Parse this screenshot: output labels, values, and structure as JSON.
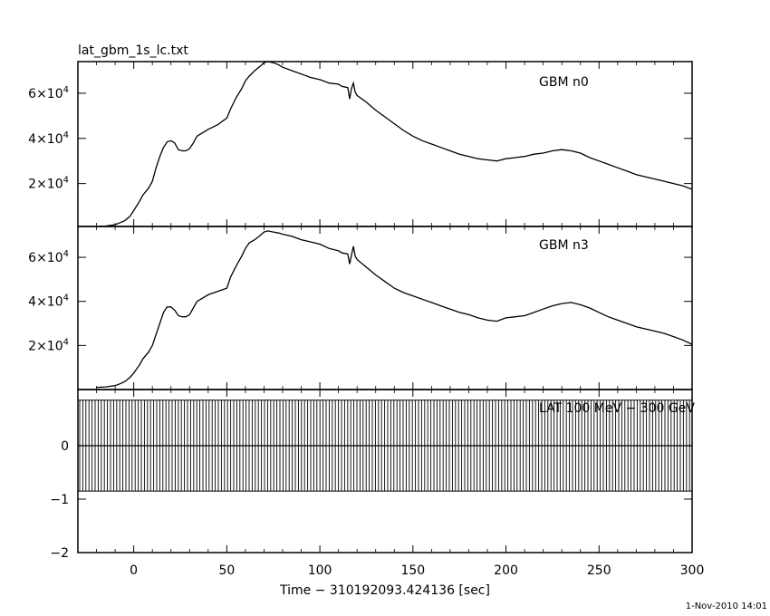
{
  "chart_data": {
    "type": "line",
    "title": "lat_gbm_1s_lc.txt",
    "xlabel": "Time − 310192093.424136 [sec]",
    "xlim": [
      -30,
      300
    ],
    "x_ticks": [
      0,
      50,
      100,
      150,
      200,
      250,
      300
    ],
    "timestamp": "1-Nov-2010 14:01",
    "panels": [
      {
        "label": "GBM n0",
        "ylim": [
          1000,
          74000
        ],
        "y_ticks": [
          {
            "base": "2×10",
            "exp": "4",
            "value": 20000
          },
          {
            "base": "4×10",
            "exp": "4",
            "value": 40000
          },
          {
            "base": "6×10",
            "exp": "4",
            "value": 60000
          }
        ],
        "series": {
          "x": [
            -20,
            -15,
            -10,
            -8,
            -5,
            -2,
            0,
            3,
            5,
            8,
            10,
            12,
            14,
            16,
            18,
            20,
            22,
            24,
            26,
            28,
            30,
            32,
            34,
            36,
            40,
            45,
            50,
            52,
            55,
            58,
            60,
            62,
            65,
            68,
            70,
            72,
            75,
            78,
            80,
            85,
            90,
            95,
            100,
            105,
            110,
            112,
            115,
            116,
            117,
            118,
            119,
            120,
            125,
            130,
            135,
            140,
            145,
            150,
            155,
            160,
            165,
            170,
            175,
            180,
            185,
            190,
            195,
            200,
            205,
            210,
            215,
            220,
            225,
            230,
            235,
            240,
            245,
            250,
            255,
            260,
            265,
            270,
            275,
            280,
            285,
            290,
            295,
            300
          ],
          "y": [
            1000,
            1200,
            1800,
            2500,
            3500,
            5500,
            8000,
            12000,
            15000,
            18000,
            21000,
            27000,
            32000,
            36000,
            38500,
            39000,
            38000,
            35000,
            34500,
            34500,
            35500,
            38000,
            41000,
            42000,
            44000,
            46000,
            49000,
            53000,
            58000,
            62000,
            65500,
            67500,
            70000,
            72000,
            73500,
            74000,
            73500,
            72500,
            71500,
            70000,
            68500,
            67000,
            66000,
            64500,
            64000,
            63000,
            62500,
            57500,
            62000,
            64500,
            60500,
            59000,
            56000,
            52500,
            49500,
            46500,
            43500,
            41000,
            39000,
            37500,
            36000,
            34500,
            33000,
            32000,
            31000,
            30500,
            30000,
            31000,
            31500,
            32000,
            33000,
            33500,
            34500,
            35000,
            34500,
            33500,
            31500,
            30000,
            28500,
            27000,
            25500,
            24000,
            23000,
            22000,
            21000,
            20000,
            19000,
            17500
          ]
        }
      },
      {
        "label": "GBM n3",
        "ylim": [
          0,
          74000
        ],
        "y_ticks": [
          {
            "base": "2×10",
            "exp": "4",
            "value": 20000
          },
          {
            "base": "4×10",
            "exp": "4",
            "value": 40000
          },
          {
            "base": "6×10",
            "exp": "4",
            "value": 60000
          }
        ],
        "series": {
          "x": [
            -20,
            -15,
            -10,
            -8,
            -5,
            -2,
            0,
            3,
            5,
            8,
            10,
            12,
            14,
            16,
            18,
            20,
            22,
            24,
            26,
            28,
            30,
            32,
            34,
            36,
            40,
            45,
            50,
            52,
            55,
            58,
            60,
            62,
            65,
            68,
            70,
            72,
            75,
            78,
            80,
            85,
            90,
            95,
            100,
            105,
            110,
            112,
            115,
            116,
            117,
            118,
            119,
            120,
            125,
            130,
            135,
            140,
            145,
            150,
            155,
            160,
            165,
            170,
            175,
            180,
            185,
            190,
            195,
            200,
            205,
            210,
            215,
            220,
            225,
            230,
            235,
            240,
            245,
            250,
            255,
            260,
            265,
            270,
            275,
            280,
            285,
            290,
            295,
            300
          ],
          "y": [
            1000,
            1200,
            1800,
            2400,
            3500,
            5500,
            7500,
            11000,
            14000,
            17000,
            20000,
            25000,
            30000,
            35000,
            37500,
            37500,
            36000,
            33500,
            33000,
            33000,
            34000,
            37000,
            40000,
            41000,
            43000,
            44500,
            46000,
            51000,
            56000,
            60500,
            64000,
            66500,
            68000,
            70000,
            71500,
            72000,
            71500,
            71000,
            70500,
            69500,
            68000,
            67000,
            66000,
            64000,
            63000,
            62000,
            61500,
            57000,
            61000,
            65000,
            60500,
            59000,
            55500,
            52000,
            49000,
            46000,
            44000,
            42500,
            41000,
            39500,
            38000,
            36500,
            35000,
            34000,
            32500,
            31500,
            31000,
            32500,
            33000,
            33500,
            35000,
            36500,
            38000,
            39000,
            39500,
            38500,
            37000,
            35000,
            33000,
            31500,
            30000,
            28500,
            27500,
            26500,
            25500,
            24000,
            22500,
            20500
          ]
        }
      },
      {
        "label": "LAT 100 MeV − 300 GeV",
        "ylim": [
          -2,
          1.05
        ],
        "y_ticks": [
          {
            "base": "0",
            "exp": "",
            "value": 0
          },
          {
            "base": "−1",
            "exp": "",
            "value": -1
          },
          {
            "base": "−2",
            "exp": "",
            "value": -2
          }
        ],
        "band": {
          "upper": 0.85,
          "lower": -0.85,
          "x_start": -30,
          "x_end": 300
        },
        "series": {
          "x": [
            -30,
            300
          ],
          "y": [
            0,
            0
          ]
        }
      }
    ]
  }
}
